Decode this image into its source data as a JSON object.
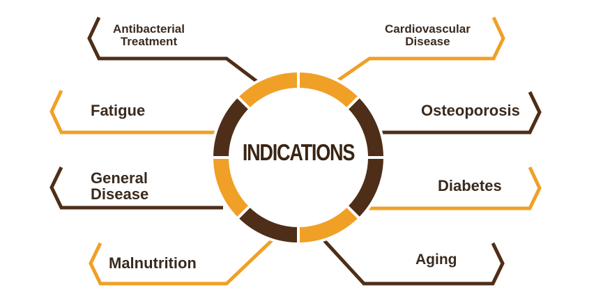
{
  "center_label": "INDICATIONS",
  "colors": {
    "dark_brown": "#4e2e18",
    "orange": "#f0a027",
    "text": "#3a2a1e"
  },
  "items": {
    "antibacterial": {
      "line1": "Antibacterial",
      "line2": "Treatment",
      "color": "dark_brown"
    },
    "cardiovascular": {
      "line1": "Cardiovascular",
      "line2": "Disease",
      "color": "orange"
    },
    "fatigue": {
      "label": "Fatigue",
      "color": "orange"
    },
    "osteoporosis": {
      "label": "Osteoporosis",
      "color": "dark_brown"
    },
    "general_disease": {
      "line1": "General",
      "line2": "Disease",
      "color": "dark_brown"
    },
    "diabetes": {
      "label": "Diabetes",
      "color": "orange"
    },
    "malnutrition": {
      "label": "Malnutrition",
      "color": "orange"
    },
    "aging": {
      "label": "Aging",
      "color": "dark_brown"
    }
  }
}
